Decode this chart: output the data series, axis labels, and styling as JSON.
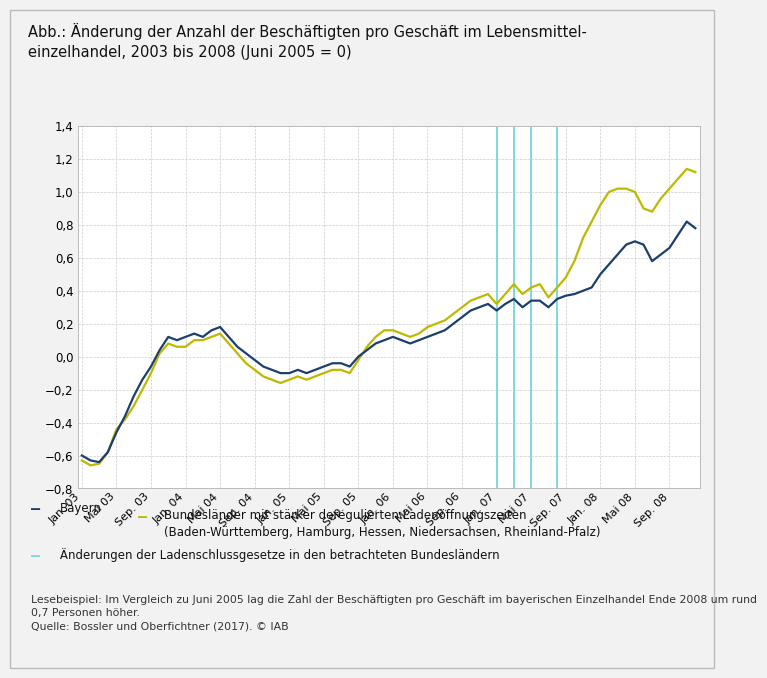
{
  "title": "Abb.: Änderung der Anzahl der Beschäftigten pro Geschäft im Lebensmittel-\neinzelhandel, 2003 bis 2008 (Juni 2005 = 0)",
  "background_color": "#f2f2f2",
  "plot_bg_color": "#ffffff",
  "ylim": [
    -0.8,
    1.4
  ],
  "bavaria_color": "#1a3f6f",
  "other_color": "#bfb800",
  "vline_color": "#80d8e0",
  "grid_color": "#cccccc",
  "legend_label_bavaria": "Bayern",
  "legend_label_other": "Bundesländer mit stärker deregulierten Ladenöffnungszeiten\n(Baden-Württemberg, Hamburg, Hessen, Niedersachsen, Rheinland-Pfalz)",
  "legend_label_vline": "Änderungen der Ladenschlussgesetze in den betrachteten Bundesländern",
  "note_text": "Lesebeispiel: Im Vergleich zu Juni 2005 lag die Zahl der Beschäftigten pro Geschäft im bayerischen Einzelhandel Ende 2008 um rund\n0,7 Personen höher.\nQuelle: Bossler und Oberfichtner (2017). © IAB",
  "vlines_x": [
    48,
    50,
    52,
    55
  ],
  "tick_labels": [
    "Jan. 03",
    "Mai 03",
    "Sep. 03",
    "Jan. 04",
    "Mai 04",
    "Sep. 04",
    "Jan. 05",
    "Mai 05",
    "Sep. 05",
    "Jan. 06",
    "Mai 06",
    "Sep. 06",
    "Jan. 07",
    "Mai 07",
    "Sep. 07",
    "Jan. 08",
    "Mai 08",
    "Sep. 08"
  ],
  "tick_positions": [
    0,
    4,
    8,
    12,
    16,
    20,
    24,
    28,
    32,
    36,
    40,
    44,
    48,
    52,
    56,
    60,
    64,
    68
  ],
  "n_points": 72,
  "bavaria": [
    -0.6,
    -0.63,
    -0.64,
    -0.58,
    -0.46,
    -0.36,
    -0.24,
    -0.14,
    -0.06,
    0.04,
    0.12,
    0.1,
    0.12,
    0.14,
    0.12,
    0.16,
    0.18,
    0.12,
    0.06,
    0.02,
    -0.02,
    -0.06,
    -0.08,
    -0.1,
    -0.1,
    -0.08,
    -0.1,
    -0.08,
    -0.06,
    -0.04,
    -0.04,
    -0.06,
    0.0,
    0.04,
    0.08,
    0.1,
    0.12,
    0.1,
    0.08,
    0.1,
    0.12,
    0.14,
    0.16,
    0.2,
    0.24,
    0.28,
    0.3,
    0.32,
    0.28,
    0.32,
    0.35,
    0.3,
    0.34,
    0.34,
    0.3,
    0.35,
    0.37,
    0.38,
    0.4,
    0.42,
    0.5,
    0.56,
    0.62,
    0.68,
    0.7,
    0.68,
    0.58,
    0.62,
    0.66,
    0.74,
    0.82,
    0.78
  ],
  "other": [
    -0.63,
    -0.66,
    -0.65,
    -0.58,
    -0.44,
    -0.38,
    -0.3,
    -0.2,
    -0.1,
    0.02,
    0.08,
    0.06,
    0.06,
    0.1,
    0.1,
    0.12,
    0.14,
    0.08,
    0.02,
    -0.04,
    -0.08,
    -0.12,
    -0.14,
    -0.16,
    -0.14,
    -0.12,
    -0.14,
    -0.12,
    -0.1,
    -0.08,
    -0.08,
    -0.1,
    -0.02,
    0.06,
    0.12,
    0.16,
    0.16,
    0.14,
    0.12,
    0.14,
    0.18,
    0.2,
    0.22,
    0.26,
    0.3,
    0.34,
    0.36,
    0.38,
    0.32,
    0.38,
    0.44,
    0.38,
    0.42,
    0.44,
    0.36,
    0.42,
    0.48,
    0.58,
    0.72,
    0.82,
    0.92,
    1.0,
    1.02,
    1.02,
    1.0,
    0.9,
    0.88,
    0.96,
    1.02,
    1.08,
    1.14,
    1.12
  ]
}
